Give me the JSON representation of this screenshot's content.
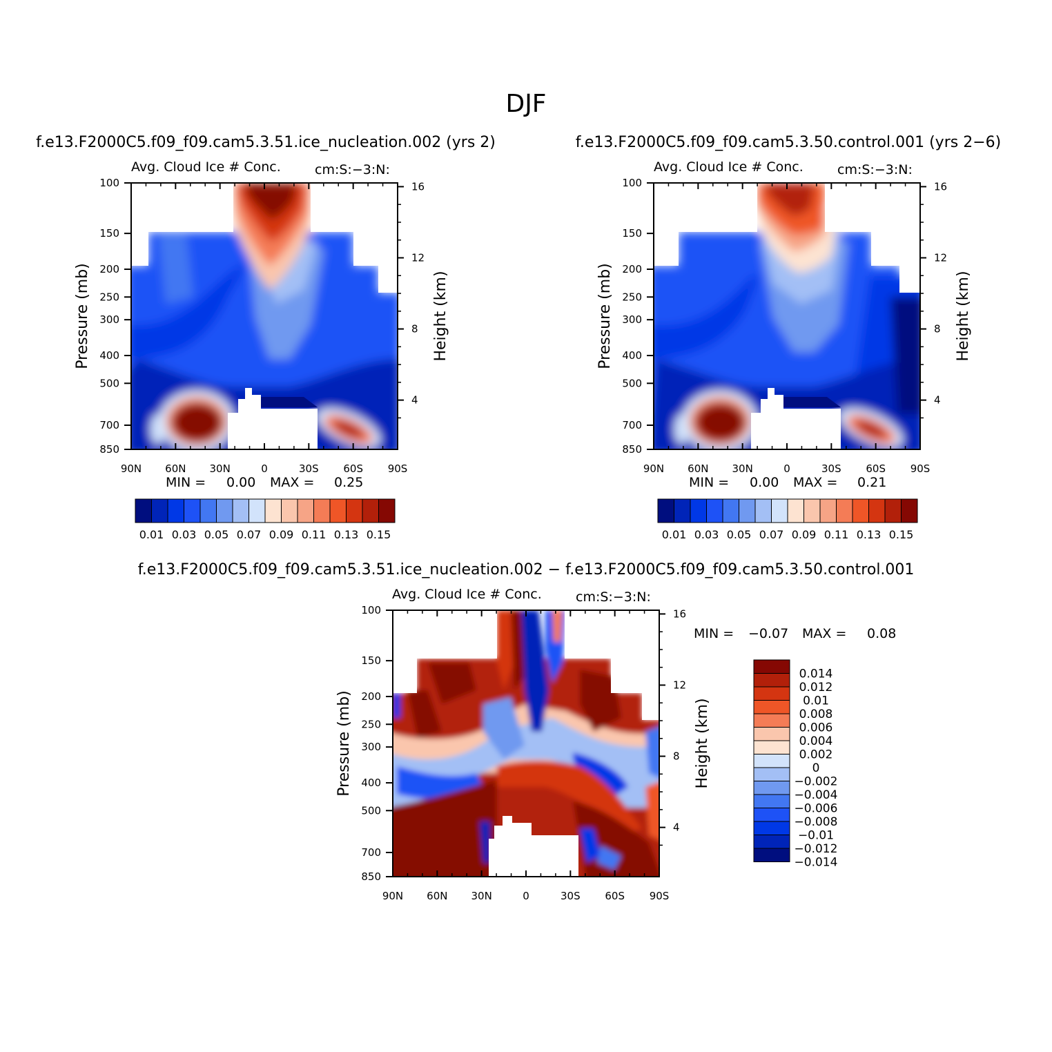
{
  "title": "DJF",
  "colors": {
    "panel_levels": [
      "#000e7f",
      "#0024b8",
      "#0038e6",
      "#1e52f6",
      "#4277f2",
      "#7099f0",
      "#a3bff5",
      "#d2e3fb",
      "#fde3d1",
      "#fac6ad",
      "#f6a486",
      "#f47c56",
      "#ef5627",
      "#d43511",
      "#b2200a",
      "#850803"
    ],
    "diff_levels": [
      "#000e7f",
      "#0024b8",
      "#0038e6",
      "#1e52f6",
      "#4277f2",
      "#7099f0",
      "#a3bff5",
      "#d2e3fb",
      "#fde3d1",
      "#fac6ad",
      "#f47c56",
      "#ef5627",
      "#d43511",
      "#b2200a",
      "#850803"
    ]
  },
  "panels": [
    {
      "case_title": "f.e13.F2000C5.f09_f09.cam5.3.51.ice_nucleation.002 (yrs 2)",
      "var_title": "Avg. Cloud Ice # Conc.",
      "units": "cm:S:−3:N:",
      "min_label": "MIN =",
      "min_value": "0.00",
      "max_label": "MAX =",
      "max_value": "0.25",
      "ylabel": "Pressure (mb)",
      "y2label": "Height (km)",
      "colorbar_labels": [
        "0.01",
        "0.03",
        "0.05",
        "0.07",
        "0.09",
        "0.11",
        "0.13",
        "0.15"
      ]
    },
    {
      "case_title": "f.e13.F2000C5.f09_f09.cam5.3.50.control.001 (yrs 2−6)",
      "var_title": "Avg. Cloud Ice # Conc.",
      "units": "cm:S:−3:N:",
      "min_label": "MIN =",
      "min_value": "0.00",
      "max_label": "MAX =",
      "max_value": "0.21",
      "ylabel": "Pressure (mb)",
      "y2label": "Height (km)",
      "colorbar_labels": [
        "0.01",
        "0.03",
        "0.05",
        "0.07",
        "0.09",
        "0.11",
        "0.13",
        "0.15"
      ]
    },
    {
      "case_title": "f.e13.F2000C5.f09_f09.cam5.3.51.ice_nucleation.002 − f.e13.F2000C5.f09_f09.cam5.3.50.control.001",
      "var_title": "Avg. Cloud Ice # Conc.",
      "units": "cm:S:−3:N:",
      "min_label": "MIN =",
      "min_value": "−0.07",
      "max_label": "MAX =",
      "max_value": "0.08",
      "ylabel": "Pressure (mb)",
      "y2label": "Height (km)",
      "colorbar_labels": [
        "0.014",
        "0.012",
        "0.01",
        "0.008",
        "0.006",
        "0.004",
        "0.002",
        "0",
        "−0.002",
        "−0.004",
        "−0.006",
        "−0.008",
        "−0.01",
        "−0.012",
        "−0.014"
      ]
    }
  ],
  "chart_data": [
    {
      "type": "heatmap",
      "title": "Avg. Cloud Ice # Conc.",
      "xlabel": "",
      "ylabel": "Pressure (mb)",
      "y2label": "Height (km)",
      "x_ticks": [
        "90N",
        "60N",
        "30N",
        "0",
        "30S",
        "60S",
        "90S"
      ],
      "x_tick_values": [
        90,
        60,
        30,
        0,
        -30,
        -60,
        -90
      ],
      "y_ticks": [
        "100",
        "150",
        "200",
        "250",
        "300",
        "400",
        "500",
        "700",
        "850"
      ],
      "y_tick_values": [
        100,
        150,
        200,
        250,
        300,
        400,
        500,
        700,
        850
      ],
      "ylim": [
        100,
        850
      ],
      "y2_ticks": [
        "4",
        "8",
        "12",
        "16"
      ],
      "y2_tick_values": [
        4,
        8,
        12,
        16
      ],
      "min": 0.0,
      "max": 0.25,
      "contour_levels": [
        0.01,
        0.02,
        0.03,
        0.04,
        0.05,
        0.06,
        0.07,
        0.08,
        0.09,
        0.1,
        0.11,
        0.12,
        0.13,
        0.14,
        0.15
      ],
      "features": [
        {
          "desc": "upper tropical ice maximum",
          "lat_range": [
            20,
            -30
          ],
          "p_range": [
            100,
            230
          ],
          "value": 0.15
        },
        {
          "desc": "NH midlatitude low-level maximum",
          "lat_range": [
            60,
            30
          ],
          "p_range": [
            650,
            850
          ],
          "value": 0.15
        },
        {
          "desc": "SH midlatitude low-level maximum",
          "lat_range": [
            -45,
            -75
          ],
          "p_range": [
            700,
            850
          ],
          "value": 0.13
        }
      ]
    },
    {
      "type": "heatmap",
      "title": "Avg. Cloud Ice # Conc.",
      "xlabel": "",
      "ylabel": "Pressure (mb)",
      "y2label": "Height (km)",
      "x_ticks": [
        "90N",
        "60N",
        "30N",
        "0",
        "30S",
        "60S",
        "90S"
      ],
      "x_tick_values": [
        90,
        60,
        30,
        0,
        -30,
        -60,
        -90
      ],
      "y_ticks": [
        "100",
        "150",
        "200",
        "250",
        "300",
        "400",
        "500",
        "700",
        "850"
      ],
      "y_tick_values": [
        100,
        150,
        200,
        250,
        300,
        400,
        500,
        700,
        850
      ],
      "ylim": [
        100,
        850
      ],
      "y2_ticks": [
        "4",
        "8",
        "12",
        "16"
      ],
      "y2_tick_values": [
        4,
        8,
        12,
        16
      ],
      "min": 0.0,
      "max": 0.21,
      "contour_levels": [
        0.01,
        0.02,
        0.03,
        0.04,
        0.05,
        0.06,
        0.07,
        0.08,
        0.09,
        0.1,
        0.11,
        0.12,
        0.13,
        0.14,
        0.15
      ],
      "features": [
        {
          "desc": "upper tropical ice maximum",
          "lat_range": [
            20,
            -25
          ],
          "p_range": [
            100,
            210
          ],
          "value": 0.13
        },
        {
          "desc": "NH midlatitude low-level maximum",
          "lat_range": [
            60,
            30
          ],
          "p_range": [
            650,
            850
          ],
          "value": 0.15
        },
        {
          "desc": "SH midlatitude low-level maximum",
          "lat_range": [
            -45,
            -75
          ],
          "p_range": [
            700,
            850
          ],
          "value": 0.13
        }
      ]
    },
    {
      "type": "heatmap",
      "title": "Avg. Cloud Ice # Conc.",
      "xlabel": "",
      "ylabel": "Pressure (mb)",
      "y2label": "Height (km)",
      "x_ticks": [
        "90N",
        "60N",
        "30N",
        "0",
        "30S",
        "60S",
        "90S"
      ],
      "x_tick_values": [
        90,
        60,
        30,
        0,
        -30,
        -60,
        -90
      ],
      "y_ticks": [
        "100",
        "150",
        "200",
        "250",
        "300",
        "400",
        "500",
        "700",
        "850"
      ],
      "y_tick_values": [
        100,
        150,
        200,
        250,
        300,
        400,
        500,
        700,
        850
      ],
      "ylim": [
        100,
        850
      ],
      "y2_ticks": [
        "4",
        "8",
        "12",
        "16"
      ],
      "y2_tick_values": [
        4,
        8,
        12,
        16
      ],
      "min": -0.07,
      "max": 0.08,
      "contour_levels": [
        -0.014,
        -0.012,
        -0.01,
        -0.008,
        -0.006,
        -0.004,
        -0.002,
        0,
        0.002,
        0.004,
        0.006,
        0.008,
        0.01,
        0.012,
        0.014
      ]
    }
  ]
}
